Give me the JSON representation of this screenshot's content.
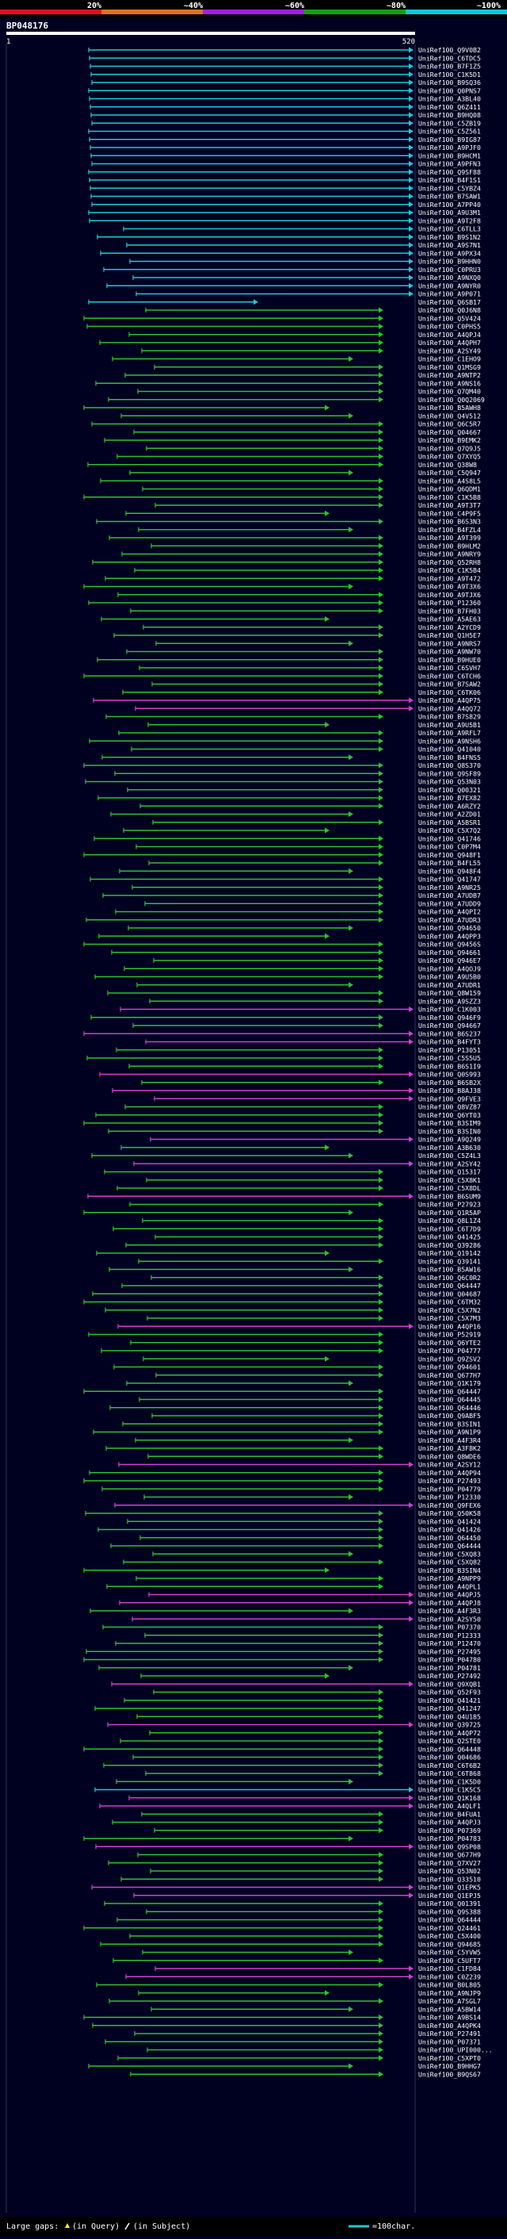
{
  "scale": {
    "percent_labels": [
      "20%",
      "~40%",
      "~60%",
      "~80%",
      "~100%"
    ],
    "segment_colors": [
      "#e01020",
      "#e07020",
      "#a020e0",
      "#10a010",
      "#10c8d8"
    ]
  },
  "query": {
    "name": "BP048176",
    "start": "1",
    "end": "520",
    "bar_color": "#ffffff"
  },
  "hit_colors": {
    "cyan": "#20c8d8",
    "green": "#30c030",
    "magenta": "#d040d0"
  },
  "hits": [
    {
      "label": "UniRef100_Q9V0B2",
      "color": "cyan"
    },
    {
      "label": "UniRef100_C6TDC5",
      "color": "cyan"
    },
    {
      "label": "UniRef100_B7F1Z5",
      "color": "cyan"
    },
    {
      "label": "UniRef100_C1K5D1",
      "color": "cyan"
    },
    {
      "label": "UniRef100_B9SQ36",
      "color": "cyan"
    },
    {
      "label": "UniRef100_Q0PNS7",
      "color": "cyan"
    },
    {
      "label": "UniRef100_A3BL40",
      "color": "cyan"
    },
    {
      "label": "UniRef100_Q6Z411",
      "color": "cyan"
    },
    {
      "label": "UniRef100_B9HQ08",
      "color": "cyan"
    },
    {
      "label": "UniRef100_C5ZB19",
      "color": "cyan"
    },
    {
      "label": "UniRef100_C5Z561",
      "color": "cyan"
    },
    {
      "label": "UniRef100_B9IG87",
      "color": "cyan"
    },
    {
      "label": "UniRef100_A9PJF0",
      "color": "cyan"
    },
    {
      "label": "UniRef100_B9HCM1",
      "color": "cyan"
    },
    {
      "label": "UniRef100_A9PFN3",
      "color": "cyan"
    },
    {
      "label": "UniRef100_Q9SF88",
      "color": "cyan"
    },
    {
      "label": "UniRef100_B4F1S1",
      "color": "cyan"
    },
    {
      "label": "UniRef100_C5YBZ4",
      "color": "cyan"
    },
    {
      "label": "UniRef100_B7SAW1",
      "color": "cyan"
    },
    {
      "label": "UniRef100_A7PP40",
      "color": "cyan"
    },
    {
      "label": "UniRef100_A9U3M1",
      "color": "cyan"
    },
    {
      "label": "UniRef100_A9T2F8",
      "color": "cyan"
    },
    {
      "label": "UniRef100_C6TLL3",
      "color": "cyan"
    },
    {
      "label": "UniRef100_B9S1N2",
      "color": "cyan"
    },
    {
      "label": "UniRef100_A9S7N1",
      "color": "cyan"
    },
    {
      "label": "UniRef100_A9PX34",
      "color": "cyan"
    },
    {
      "label": "UniRef100_B9HHN0",
      "color": "cyan"
    },
    {
      "label": "UniRef100_C0PRU3",
      "color": "cyan"
    },
    {
      "label": "UniRef100_A9NXQ0",
      "color": "cyan"
    },
    {
      "label": "UniRef100_A9NYR0",
      "color": "cyan"
    },
    {
      "label": "UniRef100_A9P071",
      "color": "cyan"
    },
    {
      "label": "UniRef100_Q6SB17",
      "color": "cyan"
    },
    {
      "label": "UniRef100_Q0J6N8",
      "color": "green"
    },
    {
      "label": "UniRef100_Q5V424",
      "color": "green"
    },
    {
      "label": "UniRef100_C0PHS5",
      "color": "green"
    },
    {
      "label": "UniRef100_A4QPJ4",
      "color": "green"
    },
    {
      "label": "UniRef100_A4QPH7",
      "color": "green"
    },
    {
      "label": "UniRef100_A2SY49",
      "color": "green"
    },
    {
      "label": "UniRef100_C1EHO9",
      "color": "green"
    },
    {
      "label": "UniRef100_Q1MSG9",
      "color": "green"
    },
    {
      "label": "UniRef100_A9NTP2",
      "color": "green"
    },
    {
      "label": "UniRef100_A9NS16",
      "color": "green"
    },
    {
      "label": "UniRef100_Q7QM40",
      "color": "green"
    },
    {
      "label": "UniRef100_Q0Q2069",
      "color": "green"
    },
    {
      "label": "UniRef100_B5AWH8",
      "color": "green"
    },
    {
      "label": "UniRef100_Q4V512",
      "color": "green"
    },
    {
      "label": "UniRef100_Q6C5R7",
      "color": "green"
    },
    {
      "label": "UniRef100_Q04667",
      "color": "green"
    },
    {
      "label": "UniRef100_B9EMK2",
      "color": "green"
    },
    {
      "label": "UniRef100_Q7Q9J5",
      "color": "green"
    },
    {
      "label": "UniRef100_Q7XYQ5",
      "color": "green"
    },
    {
      "label": "UniRef100_Q38W8",
      "color": "green"
    },
    {
      "label": "UniRef100_C5Q947",
      "color": "green"
    },
    {
      "label": "UniRef100_A4S8L5",
      "color": "green"
    },
    {
      "label": "UniRef100_Q6QDM1",
      "color": "green"
    },
    {
      "label": "UniRef100_C1K5B8",
      "color": "green"
    },
    {
      "label": "UniRef100_A9T3T7",
      "color": "green"
    },
    {
      "label": "UniRef100_C4P9F5",
      "color": "green"
    },
    {
      "label": "UniRef100_B6S3N3",
      "color": "green"
    },
    {
      "label": "UniRef100_B4FZL4",
      "color": "green"
    },
    {
      "label": "UniRef100_A9T399",
      "color": "green"
    },
    {
      "label": "UniRef100_B9HLM2",
      "color": "green"
    },
    {
      "label": "UniRef100_A9NRY9",
      "color": "green"
    },
    {
      "label": "UniRef100_Q52RH8",
      "color": "green"
    },
    {
      "label": "UniRef100_C1K5B4",
      "color": "green"
    },
    {
      "label": "UniRef100_A9T472",
      "color": "green"
    },
    {
      "label": "UniRef100_A9T3X6",
      "color": "green"
    },
    {
      "label": "UniRef100_A9TJX6",
      "color": "green"
    },
    {
      "label": "UniRef100_P12360",
      "color": "green"
    },
    {
      "label": "UniRef100_B7FH03",
      "color": "green"
    },
    {
      "label": "UniRef100_A5AE63",
      "color": "green"
    },
    {
      "label": "UniRef100_A2YCD9",
      "color": "green"
    },
    {
      "label": "UniRef100_Q1H5E7",
      "color": "green"
    },
    {
      "label": "UniRef100_A9NRS7",
      "color": "green"
    },
    {
      "label": "UniRef100_A9NW70",
      "color": "green"
    },
    {
      "label": "UniRef100_B9HUE0",
      "color": "green"
    },
    {
      "label": "UniRef100_C6SVH7",
      "color": "green"
    },
    {
      "label": "UniRef100_C6TCH6",
      "color": "green"
    },
    {
      "label": "UniRef100_B7SAW2",
      "color": "green"
    },
    {
      "label": "UniRef100_C6TK06",
      "color": "green"
    },
    {
      "label": "UniRef100_A4QP75",
      "color": "magenta"
    },
    {
      "label": "UniRef100_A4QQ72",
      "color": "magenta"
    },
    {
      "label": "UniRef100_B7S829",
      "color": "green"
    },
    {
      "label": "UniRef100_A9U5B1",
      "color": "green"
    },
    {
      "label": "UniRef100_A9RFL7",
      "color": "green"
    },
    {
      "label": "UniRef100_A9NSH6",
      "color": "green"
    },
    {
      "label": "UniRef100_Q41040",
      "color": "green"
    },
    {
      "label": "UniRef100_B4FNS5",
      "color": "green"
    },
    {
      "label": "UniRef100_Q8S370",
      "color": "green"
    },
    {
      "label": "UniRef100_Q9SF89",
      "color": "green"
    },
    {
      "label": "UniRef100_Q53N03",
      "color": "green"
    },
    {
      "label": "UniRef100_Q00321",
      "color": "green"
    },
    {
      "label": "UniRef100_B7EX82",
      "color": "green"
    },
    {
      "label": "UniRef100_A6RZY2",
      "color": "green"
    },
    {
      "label": "UniRef100_A2ZD01",
      "color": "green"
    },
    {
      "label": "UniRef100_A5BSR1",
      "color": "green"
    },
    {
      "label": "UniRef100_C5X7Q2",
      "color": "green"
    },
    {
      "label": "UniRef100_Q41746",
      "color": "green"
    },
    {
      "label": "UniRef100_C0P7M4",
      "color": "green"
    },
    {
      "label": "UniRef100_Q948F1",
      "color": "green"
    },
    {
      "label": "UniRef100_B4FL55",
      "color": "green"
    },
    {
      "label": "UniRef100_Q948F4",
      "color": "green"
    },
    {
      "label": "UniRef100_Q41747",
      "color": "green"
    },
    {
      "label": "UniRef100_A9NR25",
      "color": "green"
    },
    {
      "label": "UniRef100_A7UDB7",
      "color": "green"
    },
    {
      "label": "UniRef100_A7UDD9",
      "color": "green"
    },
    {
      "label": "UniRef100_A4QPI2",
      "color": "green"
    },
    {
      "label": "UniRef100_A7UDR3",
      "color": "green"
    },
    {
      "label": "UniRef100_Q94650",
      "color": "green"
    },
    {
      "label": "UniRef100_A4QPP3",
      "color": "green"
    },
    {
      "label": "UniRef100_Q9456S",
      "color": "green"
    },
    {
      "label": "UniRef100_Q94661",
      "color": "green"
    },
    {
      "label": "UniRef100_Q946E7",
      "color": "green"
    },
    {
      "label": "UniRef100_A4QOJ9",
      "color": "green"
    },
    {
      "label": "UniRef100_A9U5B0",
      "color": "green"
    },
    {
      "label": "UniRef100_A7UDR1",
      "color": "green"
    },
    {
      "label": "UniRef100_Q8W159",
      "color": "green"
    },
    {
      "label": "UniRef100_A9SZZ3",
      "color": "green"
    },
    {
      "label": "UniRef100_C1K003",
      "color": "magenta"
    },
    {
      "label": "UniRef100_Q946F9",
      "color": "green"
    },
    {
      "label": "UniRef100_Q94667",
      "color": "green"
    },
    {
      "label": "UniRef100_B6S237",
      "color": "magenta"
    },
    {
      "label": "UniRef100_B4FYT3",
      "color": "magenta"
    },
    {
      "label": "UniRef100_P13051",
      "color": "green"
    },
    {
      "label": "UniRef100_C5S5U5",
      "color": "green"
    },
    {
      "label": "UniRef100_B6S1I9",
      "color": "green"
    },
    {
      "label": "UniRef100_Q0S993",
      "color": "magenta"
    },
    {
      "label": "UniRef100_B6SB2X",
      "color": "green"
    },
    {
      "label": "UniRef100_B8AJ38",
      "color": "magenta"
    },
    {
      "label": "UniRef100_Q9FVE3",
      "color": "magenta"
    },
    {
      "label": "UniRef100_Q8VZ87",
      "color": "green"
    },
    {
      "label": "UniRef100_Q6YT03",
      "color": "green"
    },
    {
      "label": "UniRef100_B3SIM9",
      "color": "green"
    },
    {
      "label": "UniRef100_B3SIN0",
      "color": "green"
    },
    {
      "label": "UniRef100_A9Q249",
      "color": "magenta"
    },
    {
      "label": "UniRef100_A3B630",
      "color": "green"
    },
    {
      "label": "UniRef100_C5Z4L3",
      "color": "green"
    },
    {
      "label": "UniRef100_A2SY42",
      "color": "magenta"
    },
    {
      "label": "UniRef100_Q15317",
      "color": "green"
    },
    {
      "label": "UniRef100_C5X8K1",
      "color": "green"
    },
    {
      "label": "UniRef100_C5X8DL",
      "color": "green"
    },
    {
      "label": "UniRef100_B6SUM9",
      "color": "magenta"
    },
    {
      "label": "UniRef100_P27923",
      "color": "green"
    },
    {
      "label": "UniRef100_Q1R5AP",
      "color": "green"
    },
    {
      "label": "UniRef100_Q8L1Z4",
      "color": "green"
    },
    {
      "label": "UniRef100_C6T7D9",
      "color": "green"
    },
    {
      "label": "UniRef100_Q41425",
      "color": "green"
    },
    {
      "label": "UniRef100_Q39286",
      "color": "green"
    },
    {
      "label": "UniRef100_Q19142",
      "color": "green"
    },
    {
      "label": "UniRef100_Q39141",
      "color": "green"
    },
    {
      "label": "UniRef100_B5AW16",
      "color": "green"
    },
    {
      "label": "UniRef100_Q6C0R2",
      "color": "green"
    },
    {
      "label": "UniRef100_Q64447",
      "color": "green"
    },
    {
      "label": "UniRef100_Q04687",
      "color": "green"
    },
    {
      "label": "UniRef100_C6TM32",
      "color": "green"
    },
    {
      "label": "UniRef100_C5X7N2",
      "color": "green"
    },
    {
      "label": "UniRef100_C5X7M3",
      "color": "green"
    },
    {
      "label": "UniRef100_A4QP16",
      "color": "magenta"
    },
    {
      "label": "UniRef100_P52919",
      "color": "green"
    },
    {
      "label": "UniRef100_Q6YTE2",
      "color": "green"
    },
    {
      "label": "UniRef100_P04777",
      "color": "green"
    },
    {
      "label": "UniRef100_Q9ZSV2",
      "color": "green"
    },
    {
      "label": "UniRef100_Q94601",
      "color": "green"
    },
    {
      "label": "UniRef100_Q677H7",
      "color": "green"
    },
    {
      "label": "UniRef100_Q1K179",
      "color": "green"
    },
    {
      "label": "UniRef100_Q64447",
      "color": "green"
    },
    {
      "label": "UniRef100_Q64445",
      "color": "green"
    },
    {
      "label": "UniRef100_Q64446",
      "color": "green"
    },
    {
      "label": "UniRef100_Q9ABF5",
      "color": "green"
    },
    {
      "label": "UniRef100_B3SIN1",
      "color": "green"
    },
    {
      "label": "UniRef100_A9N1P9",
      "color": "green"
    },
    {
      "label": "UniRef100_A4F3R4",
      "color": "green"
    },
    {
      "label": "UniRef100_A3F8K2",
      "color": "green"
    },
    {
      "label": "UniRef100_Q8WDE6",
      "color": "green"
    },
    {
      "label": "UniRef100_A2SY12",
      "color": "magenta"
    },
    {
      "label": "UniRef100_A4QP94",
      "color": "green"
    },
    {
      "label": "UniRef100_P27493",
      "color": "green"
    },
    {
      "label": "UniRef100_P04779",
      "color": "green"
    },
    {
      "label": "UniRef100_P12330",
      "color": "green"
    },
    {
      "label": "UniRef100_Q9FEX6",
      "color": "magenta"
    },
    {
      "label": "UniRef100_Q50K58",
      "color": "green"
    },
    {
      "label": "UniRef100_Q41424",
      "color": "green"
    },
    {
      "label": "UniRef100_Q41426",
      "color": "green"
    },
    {
      "label": "UniRef100_Q64450",
      "color": "green"
    },
    {
      "label": "UniRef100_Q64444",
      "color": "green"
    },
    {
      "label": "UniRef100_C5XQ83",
      "color": "green"
    },
    {
      "label": "UniRef100_C5XQ82",
      "color": "green"
    },
    {
      "label": "UniRef100_B3SIN4",
      "color": "green"
    },
    {
      "label": "UniRef100_A9NPP9",
      "color": "green"
    },
    {
      "label": "UniRef100_A4QPL1",
      "color": "green"
    },
    {
      "label": "UniRef100_A4QPJ5",
      "color": "magenta"
    },
    {
      "label": "UniRef100_A4QPJ8",
      "color": "magenta"
    },
    {
      "label": "UniRef100_A4F3R3",
      "color": "green"
    },
    {
      "label": "UniRef100_A2SY50",
      "color": "magenta"
    },
    {
      "label": "UniRef100_P07370",
      "color": "green"
    },
    {
      "label": "UniRef100_P12333",
      "color": "green"
    },
    {
      "label": "UniRef100_P12470",
      "color": "green"
    },
    {
      "label": "UniRef100_P27495",
      "color": "green"
    },
    {
      "label": "UniRef100_P04780",
      "color": "green"
    },
    {
      "label": "UniRef100_P04781",
      "color": "green"
    },
    {
      "label": "UniRef100_P27492",
      "color": "green"
    },
    {
      "label": "UniRef100_Q9XQB1",
      "color": "magenta"
    },
    {
      "label": "UniRef100_Q52F93",
      "color": "green"
    },
    {
      "label": "UniRef100_Q41421",
      "color": "green"
    },
    {
      "label": "UniRef100_Q41247",
      "color": "green"
    },
    {
      "label": "UniRef100_Q4U185",
      "color": "green"
    },
    {
      "label": "UniRef100_Q39725",
      "color": "magenta"
    },
    {
      "label": "UniRef100_A4QP72",
      "color": "green"
    },
    {
      "label": "UniRef100_Q2STE0",
      "color": "green"
    },
    {
      "label": "UniRef100_Q64448",
      "color": "green"
    },
    {
      "label": "UniRef100_Q04686",
      "color": "green"
    },
    {
      "label": "UniRef100_C6T6B2",
      "color": "green"
    },
    {
      "label": "UniRef100_C6T868",
      "color": "green"
    },
    {
      "label": "UniRef100_C1K5D0",
      "color": "green"
    },
    {
      "label": "UniRef100_C1K5C5",
      "color": "cyan"
    },
    {
      "label": "UniRef100_Q1K168",
      "color": "magenta"
    },
    {
      "label": "UniRef100_A4QLF1",
      "color": "magenta"
    },
    {
      "label": "UniRef100_B4FUA1",
      "color": "green"
    },
    {
      "label": "UniRef100_A4QPJ3",
      "color": "green"
    },
    {
      "label": "UniRef100_P07369",
      "color": "green"
    },
    {
      "label": "UniRef100_P04783",
      "color": "green"
    },
    {
      "label": "UniRef100_Q9SP08",
      "color": "magenta"
    },
    {
      "label": "UniRef100_Q677H9",
      "color": "green"
    },
    {
      "label": "UniRef100_Q7XV27",
      "color": "green"
    },
    {
      "label": "UniRef100_Q53N02",
      "color": "green"
    },
    {
      "label": "UniRef100_Q33510",
      "color": "green"
    },
    {
      "label": "UniRef100_Q1EPK5",
      "color": "magenta"
    },
    {
      "label": "UniRef100_Q1EPJ5",
      "color": "magenta"
    },
    {
      "label": "UniRef100_Q01391",
      "color": "green"
    },
    {
      "label": "UniRef100_Q9S388",
      "color": "green"
    },
    {
      "label": "UniRef100_Q64444",
      "color": "green"
    },
    {
      "label": "UniRef100_Q24461",
      "color": "green"
    },
    {
      "label": "UniRef100_C5X400",
      "color": "green"
    },
    {
      "label": "UniRef100_Q94685",
      "color": "green"
    },
    {
      "label": "UniRef100_C5YVW5",
      "color": "green"
    },
    {
      "label": "UniRef100_C5UFT7",
      "color": "green"
    },
    {
      "label": "UniRef100_C1FD84",
      "color": "magenta"
    },
    {
      "label": "UniRef100_C0Z239",
      "color": "magenta"
    },
    {
      "label": "UniRef100_B0L805",
      "color": "green"
    },
    {
      "label": "UniRef100_A9NJP9",
      "color": "green"
    },
    {
      "label": "UniRef100_A7SGL7",
      "color": "green"
    },
    {
      "label": "UniRef100_A5BW14",
      "color": "green"
    },
    {
      "label": "UniRef100_A9BS14",
      "color": "green"
    },
    {
      "label": "UniRef100_A4QPK4",
      "color": "green"
    },
    {
      "label": "UniRef100_P27491",
      "color": "green"
    },
    {
      "label": "UniRef100_P07371",
      "color": "green"
    },
    {
      "label": "UniRef100_UPI000...",
      "color": "green"
    },
    {
      "label": "UniRef100_C5XPT0",
      "color": "green"
    },
    {
      "label": "UniRef100_B9HHG7",
      "color": "green"
    },
    {
      "label": "UniRef100_B9QS67",
      "color": "green"
    }
  ],
  "footer": {
    "large_gaps_label": "Large gaps:",
    "query_gap_text": "(in Query)",
    "subject_gap_text": "(in Subject)",
    "legend_text": "=100char."
  }
}
